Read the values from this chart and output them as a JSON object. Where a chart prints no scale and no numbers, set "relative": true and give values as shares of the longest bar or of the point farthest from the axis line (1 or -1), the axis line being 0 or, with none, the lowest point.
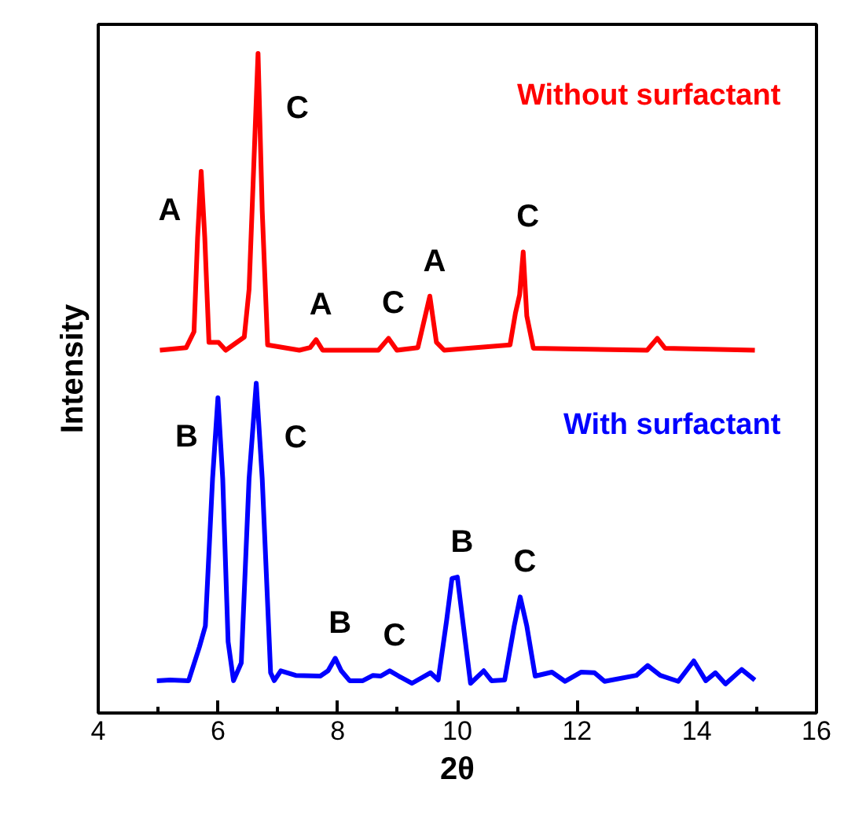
{
  "chart_data": {
    "type": "line",
    "relative": true,
    "xlabel": "2θ",
    "ylabel": "Intensity",
    "xlim": [
      4,
      16
    ],
    "xticks": [
      4,
      6,
      8,
      10,
      12,
      14,
      16
    ],
    "grid": false,
    "marker": "none",
    "line_style": "solid",
    "series": [
      {
        "name": "Without surfactant",
        "color": "#ff0000",
        "x": [
          5.03,
          5.47,
          5.6,
          5.66,
          5.72,
          5.78,
          5.85,
          6.01,
          6.13,
          6.44,
          6.52,
          6.61,
          6.67,
          6.74,
          6.83,
          7.36,
          7.54,
          7.64,
          7.75,
          8.68,
          8.85,
          8.99,
          9.34,
          9.54,
          9.65,
          9.78,
          10.88,
          10.97,
          11.04,
          11.1,
          11.16,
          11.27,
          13.17,
          13.34,
          13.47,
          14.97
        ],
        "values": [
          0.55,
          0.554,
          0.578,
          0.721,
          0.821,
          0.721,
          0.562,
          0.562,
          0.55,
          0.57,
          0.642,
          0.857,
          1.0,
          0.761,
          0.558,
          0.55,
          0.554,
          0.566,
          0.55,
          0.55,
          0.568,
          0.55,
          0.554,
          0.632,
          0.562,
          0.55,
          0.558,
          0.606,
          0.634,
          0.699,
          0.602,
          0.553,
          0.55,
          0.568,
          0.553,
          0.55
        ]
      },
      {
        "name": "With surfactant",
        "color": "#0000ff",
        "x": [
          4.98,
          5.2,
          5.51,
          5.69,
          5.79,
          5.91,
          6.0,
          6.08,
          6.17,
          6.26,
          6.39,
          6.52,
          6.64,
          6.74,
          6.88,
          6.94,
          7.05,
          7.3,
          7.71,
          7.84,
          7.96,
          8.06,
          8.2,
          8.42,
          8.59,
          8.72,
          8.87,
          9.02,
          9.24,
          9.55,
          9.68,
          9.82,
          9.91,
          10.0,
          10.09,
          10.22,
          10.44,
          10.57,
          10.79,
          10.95,
          11.05,
          11.16,
          11.3,
          11.58,
          11.8,
          12.07,
          12.29,
          12.46,
          12.99,
          13.18,
          13.39,
          13.69,
          13.95,
          14.15,
          14.31,
          14.48,
          14.75,
          14.97
        ],
        "values": [
          0.049,
          0.05,
          0.049,
          0.1,
          0.132,
          0.355,
          0.478,
          0.355,
          0.108,
          0.049,
          0.076,
          0.355,
          0.5,
          0.355,
          0.061,
          0.049,
          0.064,
          0.057,
          0.056,
          0.064,
          0.083,
          0.064,
          0.049,
          0.049,
          0.057,
          0.056,
          0.064,
          0.056,
          0.045,
          0.061,
          0.05,
          0.14,
          0.204,
          0.206,
          0.14,
          0.045,
          0.064,
          0.049,
          0.05,
          0.132,
          0.176,
          0.132,
          0.056,
          0.062,
          0.048,
          0.062,
          0.061,
          0.048,
          0.057,
          0.072,
          0.057,
          0.048,
          0.079,
          0.049,
          0.061,
          0.044,
          0.066,
          0.05
        ]
      }
    ],
    "annotations": [
      {
        "text": "A",
        "x": 5.72,
        "y": 0.821
      },
      {
        "text": "C",
        "x": 6.67,
        "y": 1.0
      },
      {
        "text": "A",
        "x": 7.64,
        "y": 0.566
      },
      {
        "text": "C",
        "x": 8.85,
        "y": 0.568
      },
      {
        "text": "A",
        "x": 9.54,
        "y": 0.632
      },
      {
        "text": "C",
        "x": 11.1,
        "y": 0.699
      },
      {
        "text": "B",
        "x": 6.0,
        "y": 0.478
      },
      {
        "text": "C",
        "x": 6.64,
        "y": 0.5
      },
      {
        "text": "B",
        "x": 7.96,
        "y": 0.083
      },
      {
        "text": "C",
        "x": 8.87,
        "y": 0.064
      },
      {
        "text": "B",
        "x": 10.0,
        "y": 0.206
      },
      {
        "text": "C",
        "x": 11.05,
        "y": 0.176
      }
    ]
  }
}
